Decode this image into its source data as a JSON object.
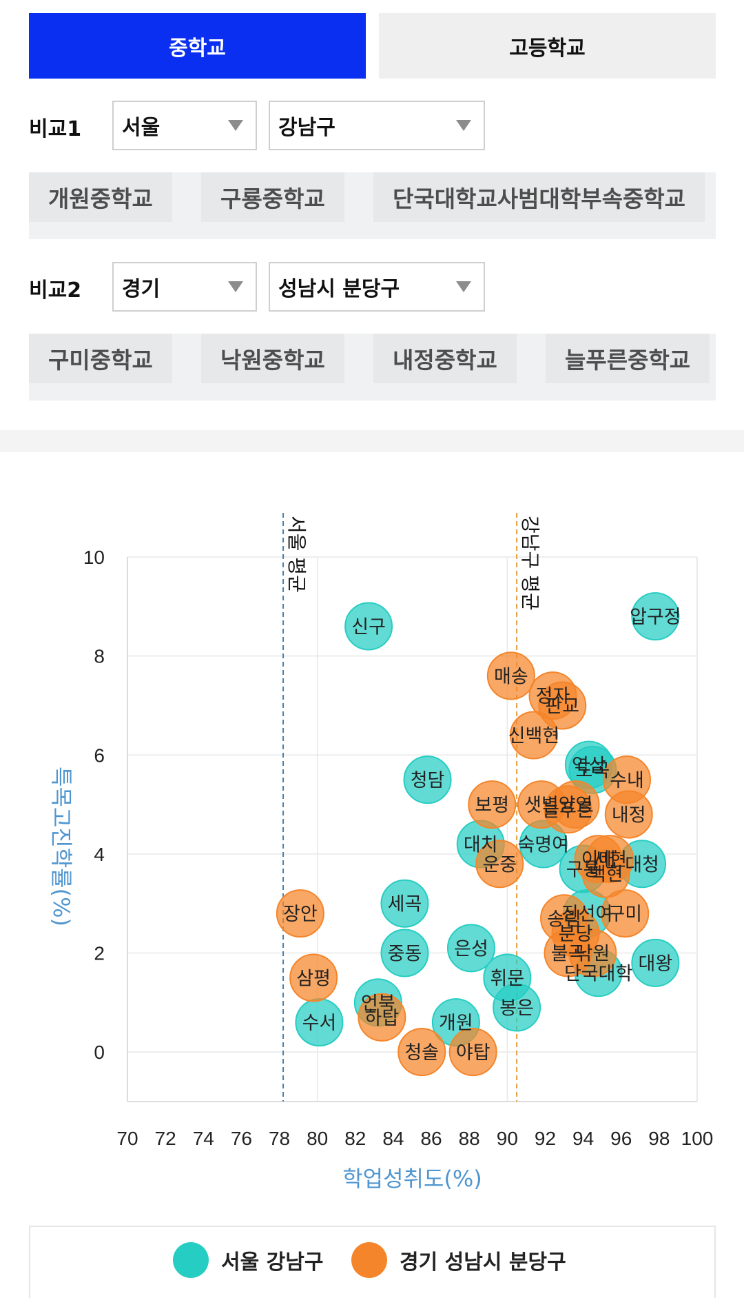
{
  "tabs": {
    "middle": "중학교",
    "high": "고등학교"
  },
  "compare1": {
    "label": "비교1",
    "region": "서울",
    "district": "강남구",
    "schools": [
      "개원중학교",
      "구룡중학교",
      "단국대학교사범대학부속중학교"
    ]
  },
  "compare2": {
    "label": "비교2",
    "region": "경기",
    "district": "성남시 분당구",
    "schools": [
      "구미중학교",
      "낙원중학교",
      "내정중학교",
      "늘푸른중학교"
    ]
  },
  "chart_data": {
    "type": "scatter",
    "xlabel": "학업성취도(%)",
    "ylabel": "특목고진학률(%)",
    "xlim": [
      70,
      100
    ],
    "ylim": [
      -1,
      10
    ],
    "xticks": [
      "70",
      "72",
      "74",
      "76",
      "78",
      "80",
      "82",
      "84",
      "86",
      "88",
      "90",
      "92",
      "94",
      "96",
      "98",
      "100"
    ],
    "yticks": [
      "0",
      "2",
      "4",
      "6",
      "8",
      "10"
    ],
    "reference_lines": [
      {
        "label": "서울 평균",
        "x": 78.2,
        "color": "#4a7fa6"
      },
      {
        "label": "강남구 평균",
        "x": 90.5,
        "color": "#e0a040"
      }
    ],
    "series": [
      {
        "name": "서울 강남구",
        "color": "#26cdc3",
        "points": [
          {
            "label": "압구정",
            "x": 97.8,
            "y": 8.8
          },
          {
            "label": "신구",
            "x": 82.7,
            "y": 8.6
          },
          {
            "label": "청담",
            "x": 85.8,
            "y": 5.5
          },
          {
            "label": "역삼",
            "x": 94.3,
            "y": 5.8
          },
          {
            "label": "도곡",
            "x": 94.5,
            "y": 5.7
          },
          {
            "label": "대치",
            "x": 88.6,
            "y": 4.2
          },
          {
            "label": "숙명여",
            "x": 91.9,
            "y": 4.2
          },
          {
            "label": "휘문",
            "x": 90,
            "y": 1.5
          },
          {
            "label": "봉은",
            "x": 90.5,
            "y": 0.9
          },
          {
            "label": "세곡",
            "x": 84.6,
            "y": 3.0
          },
          {
            "label": "중동",
            "x": 84.6,
            "y": 2.0
          },
          {
            "label": "은성",
            "x": 88.1,
            "y": 2.1
          },
          {
            "label": "언북",
            "x": 83.2,
            "y": 1.0
          },
          {
            "label": "개원",
            "x": 87.3,
            "y": 0.6
          },
          {
            "label": "수서",
            "x": 80.1,
            "y": 0.6
          },
          {
            "label": "대청",
            "x": 97.1,
            "y": 3.8
          },
          {
            "label": "대왕",
            "x": 97.8,
            "y": 1.8
          },
          {
            "label": "단국대학",
            "x": 94.8,
            "y": 1.6
          },
          {
            "label": "구룡",
            "x": 94.0,
            "y": 3.7
          },
          {
            "label": "진선여",
            "x": 94.2,
            "y": 2.8
          }
        ]
      },
      {
        "name": "경기 성남시 분당구",
        "color": "#f5852a",
        "points": [
          {
            "label": "매송",
            "x": 90.2,
            "y": 7.6
          },
          {
            "label": "정자",
            "x": 92.4,
            "y": 7.2
          },
          {
            "label": "판교",
            "x": 92.9,
            "y": 7.0
          },
          {
            "label": "신백현",
            "x": 91.4,
            "y": 6.4
          },
          {
            "label": "수내",
            "x": 96.3,
            "y": 5.5
          },
          {
            "label": "보평",
            "x": 89.2,
            "y": 5.0
          },
          {
            "label": "샛별",
            "x": 91.8,
            "y": 5.0
          },
          {
            "label": "양영",
            "x": 93.6,
            "y": 5.0
          },
          {
            "label": "늘푸른",
            "x": 93.2,
            "y": 4.9
          },
          {
            "label": "내정",
            "x": 96.4,
            "y": 4.8
          },
          {
            "label": "운중",
            "x": 89.6,
            "y": 3.8
          },
          {
            "label": "이매",
            "x": 94.8,
            "y": 3.9
          },
          {
            "label": "서현",
            "x": 95.4,
            "y": 3.9
          },
          {
            "label": "백현",
            "x": 95.2,
            "y": 3.6
          },
          {
            "label": "구미",
            "x": 96.2,
            "y": 2.8
          },
          {
            "label": "송림",
            "x": 93.0,
            "y": 2.7
          },
          {
            "label": "분당",
            "x": 93.6,
            "y": 2.4
          },
          {
            "label": "불곡",
            "x": 93.2,
            "y": 2.0
          },
          {
            "label": "낙원",
            "x": 94.5,
            "y": 2.0
          },
          {
            "label": "장안",
            "x": 79.1,
            "y": 2.8
          },
          {
            "label": "삼평",
            "x": 79.8,
            "y": 1.5
          },
          {
            "label": "하탑",
            "x": 83.4,
            "y": 0.7
          },
          {
            "label": "청솔",
            "x": 85.5,
            "y": 0.0
          },
          {
            "label": "야탑",
            "x": 88.2,
            "y": 0.0
          }
        ]
      }
    ],
    "legend": [
      "서울 강남구",
      "경기 성남시 분당구"
    ],
    "legend_position": "bottom"
  }
}
